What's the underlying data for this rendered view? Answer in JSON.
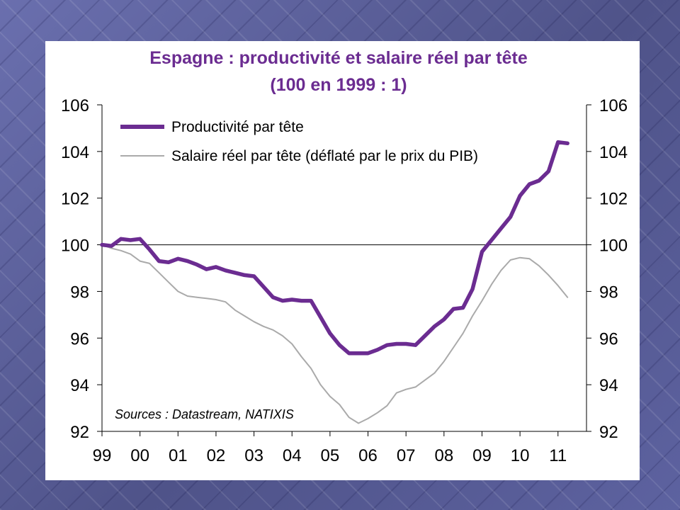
{
  "chart_data": {
    "type": "line",
    "title": "Espagne : productivité et salaire réel par tête",
    "subtitle": "(100 en 1999 : 1)",
    "source": "Sources : Datastream, NATIXIS",
    "ylim": [
      92,
      106
    ],
    "y_ticks": [
      "92",
      "94",
      "96",
      "98",
      "100",
      "102",
      "104",
      "106"
    ],
    "y_tick_values": [
      92,
      94,
      96,
      98,
      100,
      102,
      104,
      106
    ],
    "x_ticks": [
      "99",
      "00",
      "01",
      "02",
      "03",
      "04",
      "05",
      "06",
      "07",
      "08",
      "09",
      "10",
      "11"
    ],
    "xlim": [
      1999,
      2011.75
    ],
    "reference_line": 100,
    "grid": false,
    "legend_position": "top-left",
    "series": [
      {
        "name": "Productivité par tête",
        "color": "#6b2c91",
        "x": [
          1999.0,
          1999.25,
          1999.5,
          1999.75,
          2000.0,
          2000.25,
          2000.5,
          2000.75,
          2001.0,
          2001.25,
          2001.5,
          2001.75,
          2002.0,
          2002.25,
          2002.5,
          2002.75,
          2003.0,
          2003.25,
          2003.5,
          2003.75,
          2004.0,
          2004.25,
          2004.5,
          2004.75,
          2005.0,
          2005.25,
          2005.5,
          2005.75,
          2006.0,
          2006.25,
          2006.5,
          2006.75,
          2007.0,
          2007.25,
          2007.5,
          2007.75,
          2008.0,
          2008.25,
          2008.5,
          2008.75,
          2009.0,
          2009.25,
          2009.5,
          2009.75,
          2010.0,
          2010.25,
          2010.5,
          2010.75,
          2011.0,
          2011.25
        ],
        "y": [
          100.0,
          99.95,
          100.25,
          100.2,
          100.25,
          99.8,
          99.3,
          99.25,
          99.4,
          99.3,
          99.15,
          98.95,
          99.05,
          98.9,
          98.8,
          98.7,
          98.65,
          98.2,
          97.75,
          97.6,
          97.65,
          97.6,
          97.6,
          96.9,
          96.2,
          95.7,
          95.35,
          95.35,
          95.35,
          95.5,
          95.7,
          95.75,
          95.75,
          95.7,
          96.1,
          96.5,
          96.8,
          97.25,
          97.3,
          98.1,
          99.7,
          100.2,
          100.7,
          101.2,
          102.1,
          102.6,
          102.75,
          103.15,
          104.4,
          104.35
        ]
      },
      {
        "name": "Salaire réel par tête (déflaté par le prix du PIB)",
        "color": "#aaaaaa",
        "x": [
          1999.0,
          1999.25,
          1999.5,
          1999.75,
          2000.0,
          2000.25,
          2000.5,
          2000.75,
          2001.0,
          2001.25,
          2001.5,
          2001.75,
          2002.0,
          2002.25,
          2002.5,
          2002.75,
          2003.0,
          2003.25,
          2003.5,
          2003.75,
          2004.0,
          2004.25,
          2004.5,
          2004.75,
          2005.0,
          2005.25,
          2005.5,
          2005.75,
          2006.0,
          2006.25,
          2006.5,
          2006.75,
          2007.0,
          2007.25,
          2007.5,
          2007.75,
          2008.0,
          2008.25,
          2008.5,
          2008.75,
          2009.0,
          2009.25,
          2009.5,
          2009.75,
          2010.0,
          2010.25,
          2010.5,
          2010.75,
          2011.0,
          2011.25
        ],
        "y": [
          100.0,
          99.85,
          99.75,
          99.6,
          99.3,
          99.2,
          98.8,
          98.4,
          98.0,
          97.8,
          97.75,
          97.7,
          97.65,
          97.55,
          97.2,
          96.95,
          96.7,
          96.5,
          96.35,
          96.1,
          95.75,
          95.2,
          94.7,
          94.0,
          93.5,
          93.15,
          92.6,
          92.35,
          92.55,
          92.8,
          93.1,
          93.65,
          93.8,
          93.9,
          94.2,
          94.5,
          95.0,
          95.6,
          96.2,
          96.95,
          97.6,
          98.3,
          98.9,
          99.35,
          99.45,
          99.4,
          99.1,
          98.7,
          98.25,
          97.75
        ]
      }
    ]
  }
}
